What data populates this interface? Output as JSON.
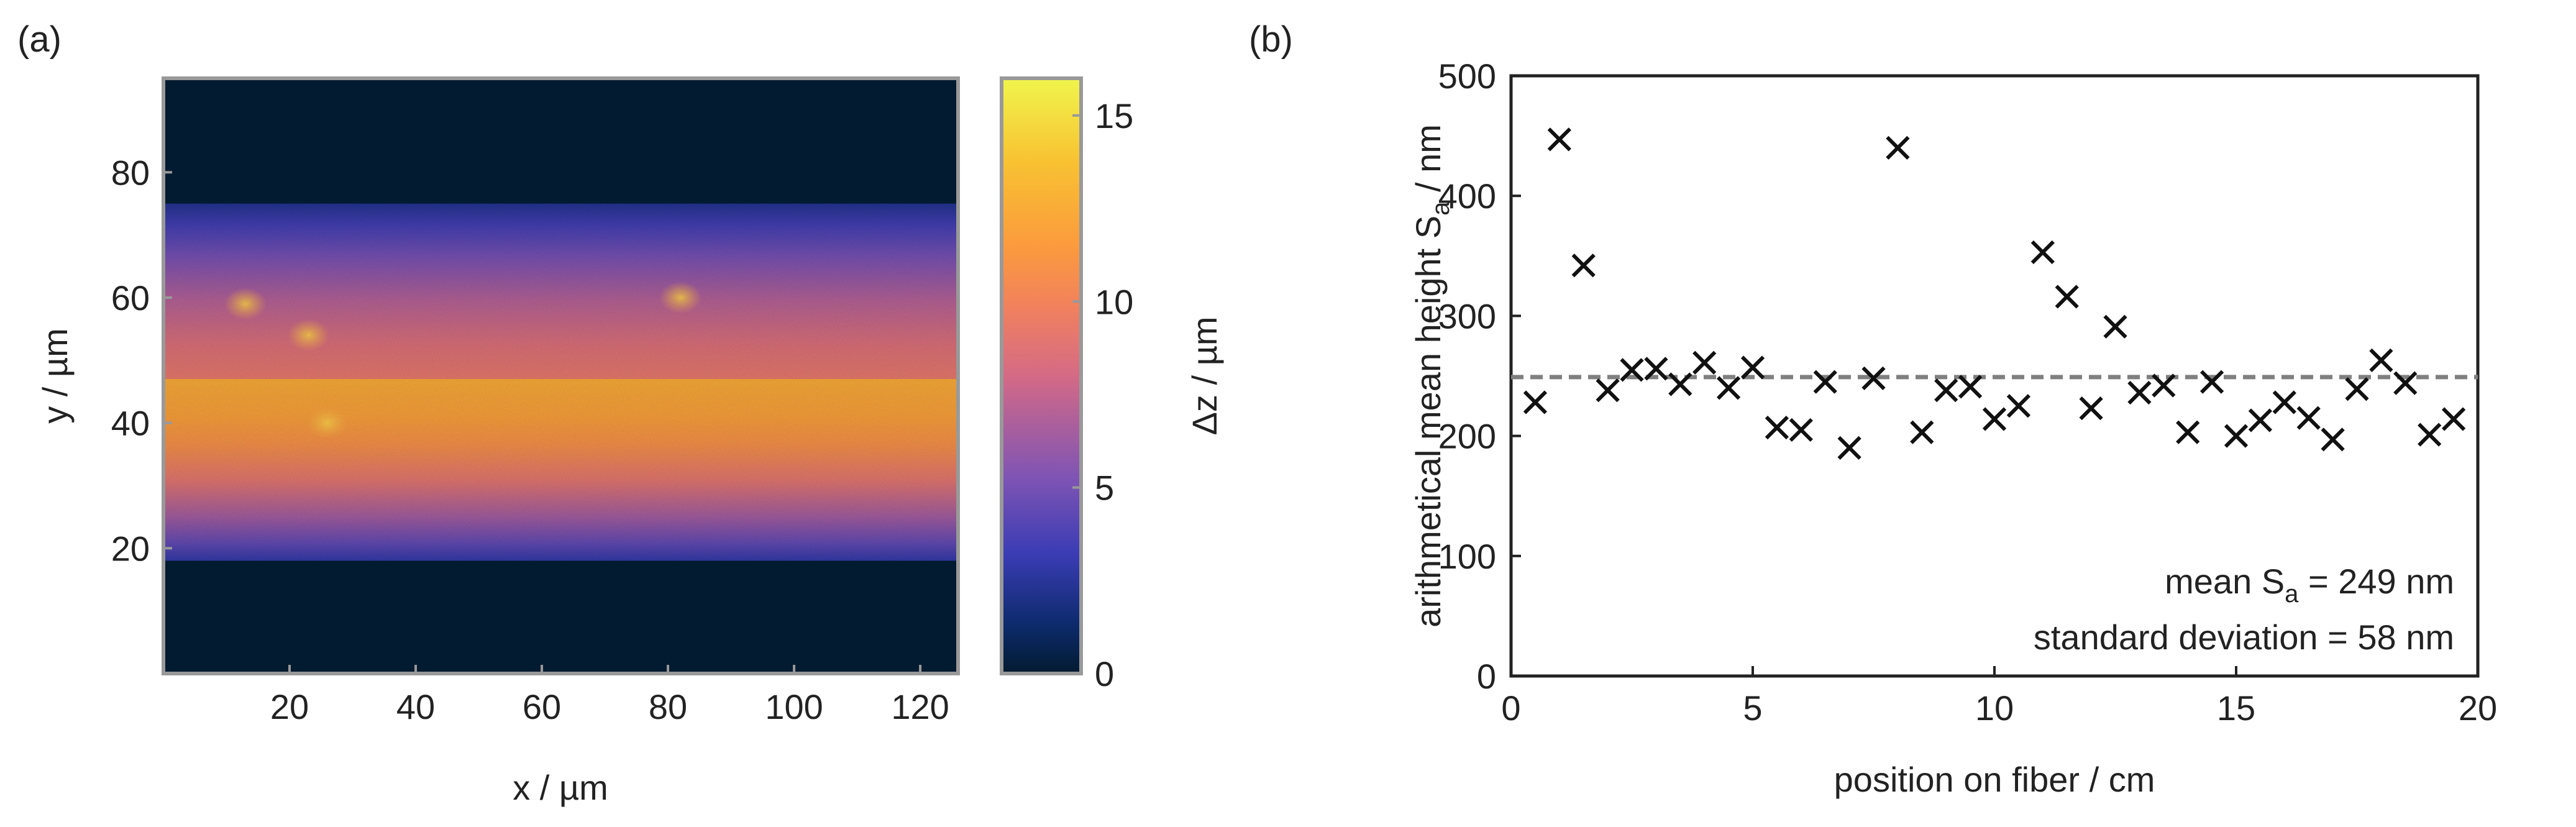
{
  "chart_data": [
    {
      "panel_label": "(a)",
      "type": "heatmap",
      "xlabel": "x / µm",
      "ylabel": "y / µm",
      "xlim": [
        0,
        126
      ],
      "ylim": [
        0,
        95
      ],
      "x_ticks": [
        "20",
        "40",
        "60",
        "80",
        "100",
        "120"
      ],
      "y_ticks": [
        "20",
        "40",
        "60",
        "80"
      ],
      "colorbar": {
        "label": "Δz / µm",
        "range": [
          0,
          16
        ],
        "ticks": [
          "0",
          "5",
          "10",
          "15"
        ]
      },
      "band": {
        "bottom_y": 18,
        "top_y": 75,
        "center_y": 47,
        "peak_value": 12.5,
        "background_value": 0
      },
      "hotspots": [
        {
          "x": 23,
          "y": 54,
          "value": 14.5
        },
        {
          "x": 26,
          "y": 40,
          "value": 14
        },
        {
          "x": 13,
          "y": 59,
          "value": 13.5
        },
        {
          "x": 82,
          "y": 60,
          "value": 13.5
        }
      ]
    },
    {
      "panel_label": "(b)",
      "type": "scatter",
      "marker": "x",
      "xlabel": "position on fiber / cm",
      "ylabel": "arithmetical mean height Sa / nm",
      "xlim": [
        0,
        20
      ],
      "ylim": [
        0,
        500
      ],
      "x_ticks": [
        "0",
        "5",
        "10",
        "15",
        "20"
      ],
      "y_ticks": [
        "0",
        "100",
        "200",
        "300",
        "400",
        "500"
      ],
      "x": [
        0.5,
        1,
        1.5,
        2,
        2.5,
        3,
        3.5,
        4,
        4.5,
        5,
        5.5,
        6,
        6.5,
        7,
        7.5,
        8,
        8.5,
        9,
        9.5,
        10,
        10.5,
        11,
        11.5,
        12,
        12.5,
        13,
        13.5,
        14,
        14.5,
        15,
        15.5,
        16,
        16.5,
        17,
        17.5,
        18,
        18.5,
        19,
        19.5
      ],
      "y": [
        228,
        447,
        342,
        238,
        255,
        256,
        243,
        261,
        240,
        257,
        207,
        205,
        245,
        190,
        248,
        440,
        203,
        238,
        241,
        214,
        225,
        353,
        316,
        223,
        291,
        236,
        242,
        203,
        245,
        200,
        213,
        228,
        215,
        197,
        239,
        263,
        244,
        201,
        214
      ],
      "mean_line": 249,
      "annotation_lines": [
        "mean Sa = 249 nm",
        "standard deviation = 58 nm"
      ]
    }
  ]
}
